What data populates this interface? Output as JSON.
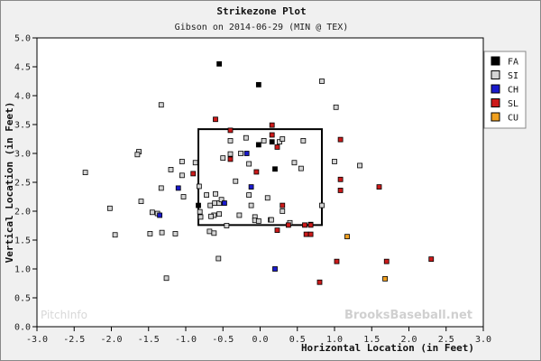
{
  "title": "Strikezone Plot",
  "subtitle": "Gibson on 2014-06-29 (MIN @ TEX)",
  "watermark_left": "PitchInfo",
  "watermark_right": "BrooksBaseball.net",
  "chart_data": {
    "type": "scatter",
    "xlabel": "Horizontal Location (in Feet)",
    "ylabel": "Vertical Location (in Feet)",
    "xlim": [
      -3.0,
      3.0
    ],
    "ylim": [
      0.0,
      5.0
    ],
    "x_ticks": [
      "-3.0",
      "-2.5",
      "-2.0",
      "-1.5",
      "-1.0",
      "-0.5",
      "0.0",
      "0.5",
      "1.0",
      "1.5",
      "2.0",
      "2.5",
      "3.0"
    ],
    "y_ticks": [
      "0.0",
      "0.5",
      "1.0",
      "1.5",
      "2.0",
      "2.5",
      "3.0",
      "3.5",
      "4.0",
      "4.5",
      "5.0"
    ],
    "grid": false,
    "legend_position": "right",
    "strike_zone": {
      "x": [
        -0.83,
        0.83
      ],
      "y": [
        1.76,
        3.42
      ]
    },
    "series": [
      {
        "name": "FA",
        "color": "#000000",
        "points": [
          [
            -0.55,
            4.55
          ],
          [
            -0.02,
            4.19
          ],
          [
            -0.02,
            3.15
          ],
          [
            0.16,
            3.2
          ],
          [
            0.2,
            2.73
          ],
          [
            -0.83,
            2.1
          ]
        ]
      },
      {
        "name": "SI",
        "color": "#d4d4d4",
        "points": [
          [
            0.83,
            4.25
          ],
          [
            1.02,
            3.8
          ],
          [
            -1.33,
            3.84
          ],
          [
            -1.63,
            3.03
          ],
          [
            -1.65,
            2.98
          ],
          [
            -2.35,
            2.67
          ],
          [
            -1.2,
            2.72
          ],
          [
            -1.05,
            2.86
          ],
          [
            -1.05,
            2.62
          ],
          [
            -0.87,
            2.84
          ],
          [
            -0.82,
            2.43
          ],
          [
            -1.33,
            2.4
          ],
          [
            -1.03,
            2.25
          ],
          [
            -1.6,
            2.17
          ],
          [
            -1.45,
            1.98
          ],
          [
            -1.38,
            1.96
          ],
          [
            -2.02,
            2.05
          ],
          [
            -1.95,
            1.59
          ],
          [
            -1.48,
            1.61
          ],
          [
            -1.32,
            1.63
          ],
          [
            -1.14,
            1.61
          ],
          [
            -0.81,
            1.99
          ],
          [
            -0.8,
            1.9
          ],
          [
            -0.72,
            2.28
          ],
          [
            -0.67,
            2.1
          ],
          [
            -0.61,
            2.14
          ],
          [
            -0.6,
            2.3
          ],
          [
            -0.62,
            1.93
          ],
          [
            -0.55,
            2.14
          ],
          [
            -0.52,
            2.2
          ],
          [
            -0.55,
            1.95
          ],
          [
            -0.66,
            1.91
          ],
          [
            -0.68,
            1.65
          ],
          [
            -0.62,
            1.62
          ],
          [
            -0.45,
            1.75
          ],
          [
            -0.5,
            2.92
          ],
          [
            -0.4,
            2.99
          ],
          [
            -0.4,
            3.22
          ],
          [
            -0.33,
            2.52
          ],
          [
            -0.26,
            3.0
          ],
          [
            -0.19,
            3.27
          ],
          [
            -0.15,
            2.82
          ],
          [
            -0.15,
            2.28
          ],
          [
            -0.12,
            2.1
          ],
          [
            -0.07,
            1.9
          ],
          [
            -0.07,
            1.84
          ],
          [
            -0.02,
            1.83
          ],
          [
            -0.28,
            1.93
          ],
          [
            0.05,
            3.22
          ],
          [
            0.1,
            2.23
          ],
          [
            0.14,
            1.85
          ],
          [
            0.26,
            3.2
          ],
          [
            0.3,
            3.25
          ],
          [
            0.4,
            1.8
          ],
          [
            0.46,
            2.84
          ],
          [
            0.55,
            2.74
          ],
          [
            0.58,
            3.22
          ],
          [
            0.68,
            1.77
          ],
          [
            0.83,
            2.1
          ],
          [
            1.0,
            2.86
          ],
          [
            1.34,
            2.79
          ],
          [
            0.3,
            2.0
          ],
          [
            -0.56,
            1.18
          ],
          [
            -1.26,
            0.84
          ],
          [
            0.15,
            1.85
          ]
        ]
      },
      {
        "name": "CH",
        "color": "#1a1acc",
        "points": [
          [
            -1.35,
            1.93
          ],
          [
            -1.1,
            2.4
          ],
          [
            -0.18,
            3.0
          ],
          [
            -0.12,
            2.42
          ],
          [
            -0.48,
            2.14
          ],
          [
            0.2,
            1.0
          ]
        ]
      },
      {
        "name": "SL",
        "color": "#cc1a1a",
        "points": [
          [
            -0.6,
            3.59
          ],
          [
            -0.4,
            3.4
          ],
          [
            0.16,
            3.49
          ],
          [
            0.16,
            3.32
          ],
          [
            0.23,
            3.11
          ],
          [
            -0.9,
            2.65
          ],
          [
            -0.4,
            2.9
          ],
          [
            -0.05,
            2.68
          ],
          [
            0.3,
            2.1
          ],
          [
            0.23,
            1.67
          ],
          [
            0.38,
            1.76
          ],
          [
            0.6,
            1.76
          ],
          [
            0.68,
            1.76
          ],
          [
            0.62,
            1.6
          ],
          [
            0.68,
            1.6
          ],
          [
            1.08,
            3.24
          ],
          [
            1.08,
            2.55
          ],
          [
            1.08,
            2.36
          ],
          [
            1.6,
            2.42
          ],
          [
            0.8,
            0.77
          ],
          [
            1.03,
            1.13
          ],
          [
            1.7,
            1.13
          ],
          [
            2.3,
            1.17
          ]
        ]
      },
      {
        "name": "CU",
        "color": "#f0a020",
        "points": [
          [
            1.17,
            1.56
          ],
          [
            1.68,
            0.83
          ]
        ]
      }
    ]
  }
}
